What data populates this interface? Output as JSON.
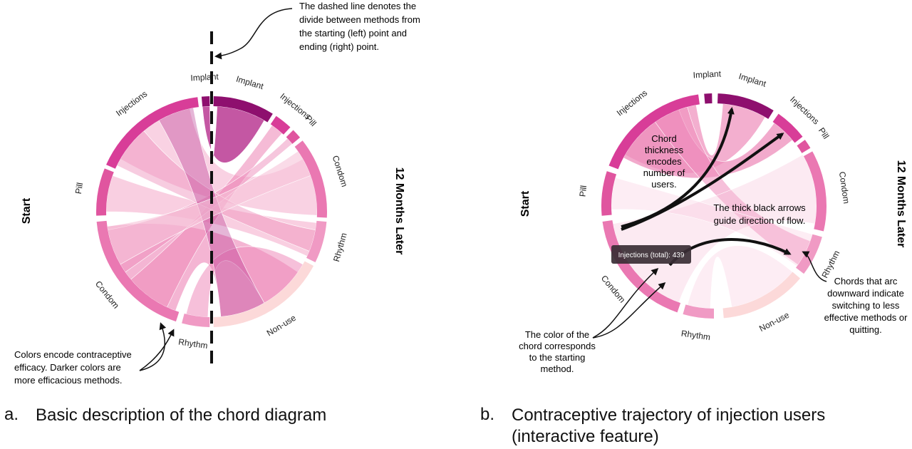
{
  "panels": [
    {
      "id": "a",
      "start_label": "Start",
      "end_label": "12 Months Later",
      "left_arcs": [
        "Rhythm",
        "Condom",
        "Pill",
        "Injections",
        "Implant"
      ],
      "right_arcs": [
        "Implant",
        "Injections",
        "Pill",
        "Condom",
        "Rhythm",
        "Non-use"
      ],
      "annotations": {
        "dashed_line": "The dashed line denotes the\ndivide between methods from\nthe starting (left) point and\nending (right) point.",
        "colors": "Colors encode contraceptive\nefficacy. Darker colors are\nmore efficacious methods."
      },
      "caption_letter": "a.",
      "caption_text": "Basic description of the chord diagram"
    },
    {
      "id": "b",
      "start_label": "Start",
      "end_label": "12 Months Later",
      "left_arcs": [
        "Rhythm",
        "Condom",
        "Pill",
        "Injections",
        "Implant"
      ],
      "right_arcs": [
        "Implant",
        "Injections",
        "Pill",
        "Condom",
        "Rhythm",
        "Non-use"
      ],
      "annotations": {
        "thickness": "Chord\nthickness\nencodes\nnumber of\nusers.",
        "arrows": "The thick black arrows\nguide direction of flow.",
        "tooltip": "Injections (total): 439",
        "chord_color": "The color of the\nchord corresponds\nto the starting\nmethod.",
        "downward": "Chords that arc\ndownward indicate\nswitching to less\neffective methods or\nquitting."
      },
      "caption_letter": "b.",
      "caption_text": "Contraceptive trajectory of injection users\n(interactive feature)"
    }
  ],
  "colors": {
    "implant": "#8e0f6e",
    "injections": "#d83d98",
    "pill": "#e0559f",
    "condom": "#ea78b2",
    "rhythm": "#f09ac4",
    "nonuse": "#fcd9d9",
    "ribbon_light": "#f7c3d9",
    "ribbon_mid": "#ee8dbb",
    "ribbon_dark": "#b52d8c"
  }
}
